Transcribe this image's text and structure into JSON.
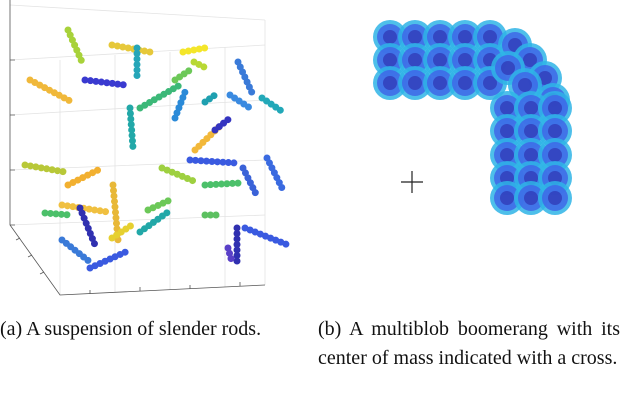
{
  "figure": {
    "subfigures": [
      {
        "caption": "(a) A suspension of slender rods."
      },
      {
        "caption": "(b) A multiblob boomerang with its center of mass indicated with a cross."
      }
    ]
  }
}
